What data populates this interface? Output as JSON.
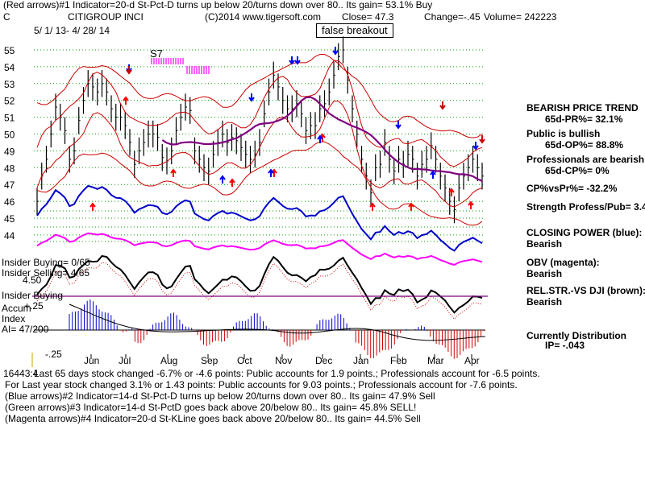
{
  "header": {
    "line1": "(Red arrows)#1 Indicator=20-d St-Pct-D turns up below 20/turns down over 80.. Its gain= 53.1% Buy",
    "symbol": "C",
    "company": "CITIGROUP INCI",
    "copyright": "(C)2014 www.tigersoft.com",
    "close": "Close=  47.3",
    "change": "Change=-.45",
    "volume": "Volume= 242223",
    "date_range": "5/ 1/ 13-  4/ 28/ 14"
  },
  "annotations": {
    "false_breakout": "false breakout",
    "s7": "S7"
  },
  "left_labels": {
    "insider_buying_count": "Insider Buying= 0/65",
    "insider_selling_count": "Insider Selling= 4/65",
    "scale_450": "4.50",
    "insider_buying": "Insider Buying",
    "accum_plus": "+.25",
    "accum1": "Accum",
    "accum2": "Index",
    "ai": "AI= 47/200",
    "accum_minus": "-.25"
  },
  "right_panel": {
    "bearish_trend": "BEARISH PRICE TREND",
    "pr": "65d-PR%= 32.1%",
    "public": "Public is bullish",
    "op": "65d-OP%= 88.8%",
    "professionals": "Professionals are bearish",
    "cp": "65d-CP%= 0%",
    "cpvspr": "CP%vsPr%= -32.2%",
    "strength": "Strength Profess/Pub= 3.4",
    "closing_power": "CLOSING POWER (blue):",
    "cp_val": "Bearish",
    "obv": "OBV (magenta):",
    "obv_val": "Bearish",
    "relstr": "REL.STR.-VS DJI (brown):",
    "relstr_val": "Bearish",
    "distribution": "Currently Distribution",
    "ip": "IP= -.043"
  },
  "footer": {
    "line1": "Last 65 days stock changed -6.7% or -4.6 points:  Public accounts for  1.9 points.;  Professionals account for -6.5 points.",
    "line1_overlap": "16443:4",
    "line2": "For Last year stock changed  3.1% or  1.43 points:  Public accounts for  9.03 points.;  Professionals account for -7.6 points.",
    "line3": "(Blue arrows)#2 Indicator=14-d St-Pct-D turns up below 20/turns down over 80.. Its gain= 47.9% Sell",
    "line4": "(Green arrows)#3 Indicator=14-d St-PctD goes back above 20/below 80.. Its gain= 45.8% SELL!",
    "line5": "(Magenta arrows)#4 Indicator=20-d St-KLine goes back above 20/below 80.. Its gain= 44.5% Sell"
  },
  "colors": {
    "price_bars": "#000000",
    "bands": "#cc0000",
    "ma": "#800080",
    "closing_power": "#0000cc",
    "obv": "#ff00ff",
    "accum_pos": "#0000cc",
    "accum_neg": "#cc0000",
    "buy_arrow": "#ff0000",
    "sell_arrow_blue": "#0000ff",
    "sell_arrow_red": "#cc0000",
    "green_arrow": "#00a000",
    "insider_line": "#800080",
    "grid": "#00a000"
  },
  "chart_data": {
    "type": "line",
    "title": "CITIGROUP INCI",
    "ylabel": "",
    "ylim": [
      43.5,
      55.5
    ],
    "y_ticks": [
      55,
      54,
      53,
      52,
      51,
      50,
      49,
      48,
      47,
      46,
      45,
      44
    ],
    "x_ticks": [
      "Jun",
      "Jul",
      "Aug",
      "Sep",
      "Oct",
      "Nov",
      "Dec",
      "Jan",
      "Feb",
      "Mar",
      "Apr"
    ],
    "price_close": [
      46,
      47.5,
      48.5,
      50,
      51.6,
      51,
      50.2,
      48.5,
      49,
      50.8,
      52,
      53,
      52.8,
      52.5,
      53,
      52.5,
      51.5,
      51,
      51,
      50.5,
      49.5,
      48.2,
      49,
      49.5,
      50,
      50,
      49.8,
      48.6,
      48.4,
      49,
      50.2,
      51,
      51.6,
      51.4,
      49,
      48.5,
      48,
      47.8,
      48.8,
      49.5,
      50,
      49.5,
      49.8,
      49.6,
      49.2,
      48.8,
      48.5,
      48.8,
      49.5,
      51.2,
      52.5,
      53.5,
      52.8,
      52,
      51.5,
      51.5,
      51.8,
      51.2,
      50.2,
      50.5,
      50.5,
      51.5,
      51.8,
      52.5,
      53.5,
      54.6,
      55,
      53.2,
      51.5,
      50,
      48.5,
      47.5,
      46.5,
      48,
      48.2,
      49.5,
      48.5,
      47.8,
      48.5,
      48.2,
      48.8,
      48.5,
      47.5,
      48.2,
      48.5,
      49.3,
      48.5,
      47.5,
      46.8,
      46,
      45.5,
      46.8,
      47.5,
      48,
      48.5,
      48,
      47.5
    ],
    "sell_arrows_blue_count": 6,
    "buy_arrows_red_count": 10
  }
}
